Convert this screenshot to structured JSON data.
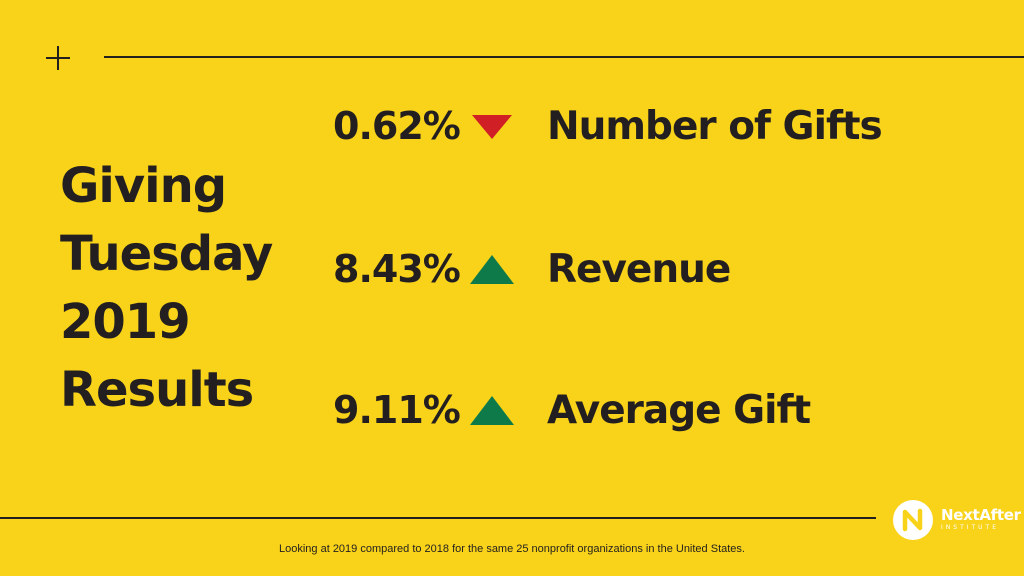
{
  "colors": {
    "background": "#F8D31A",
    "text": "#231F20",
    "down": "#D01F25",
    "up": "#0E7A4A",
    "logo": "#FFFFFF"
  },
  "title_lines": [
    "Giving",
    "Tuesday",
    "2019",
    "Results"
  ],
  "metrics": [
    {
      "value": "0.62%",
      "direction": "down",
      "label": "Number of Gifts"
    },
    {
      "value": "8.43%",
      "direction": "up",
      "label": "Revenue"
    },
    {
      "value": "9.11%",
      "direction": "up",
      "label": "Average Gift"
    }
  ],
  "logo": {
    "name": "NextAfter",
    "subtitle": "INSTITUTE",
    "icon": "nextafter-logo-icon"
  },
  "footnote": "Looking at 2019 compared to 2018 for the same 25 nonprofit organizations in the United States."
}
